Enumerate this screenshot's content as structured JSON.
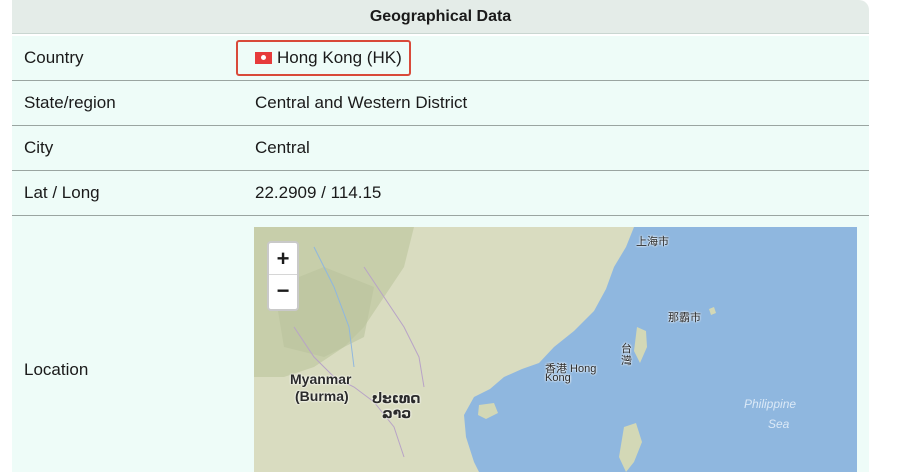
{
  "title": "Geographical Data",
  "rows": [
    {
      "label": "Country",
      "value": "Hong Kong (HK)",
      "flag": "hong-kong-flag"
    },
    {
      "label": "State/region",
      "value": "Central and Western District"
    },
    {
      "label": "City",
      "value": "Central"
    },
    {
      "label": "Lat / Long",
      "value": "22.2909 / 114.15"
    },
    {
      "label": "Location"
    }
  ],
  "map": {
    "zoom_in": "+",
    "zoom_out": "−",
    "labels": [
      {
        "text": "上海市"
      },
      {
        "text": "那霸市"
      },
      {
        "text": "台"
      },
      {
        "text": "灣"
      },
      {
        "text": "香港 Hong"
      },
      {
        "text": "Kong"
      },
      {
        "text": "Myanmar"
      },
      {
        "text": "(Burma)"
      },
      {
        "text": "ປະເທດ"
      },
      {
        "text": "ລາວ"
      },
      {
        "text": "Philippine"
      },
      {
        "text": "Sea"
      }
    ]
  }
}
